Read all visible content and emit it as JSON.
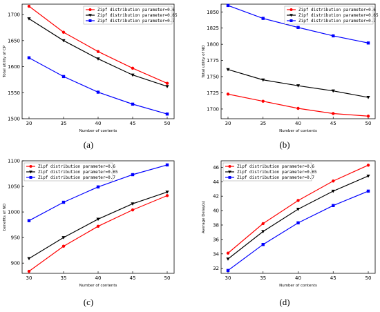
{
  "chart_data": [
    {
      "type": "line",
      "panel_label": "(a)",
      "xlabel": "Number of contents",
      "ylabel": "Total utility of CP",
      "x": [
        30,
        35,
        40,
        45,
        50
      ],
      "xlim": [
        30,
        50
      ],
      "ylim": [
        1500,
        1720
      ],
      "yticks": [
        1500,
        1550,
        1600,
        1650,
        1700
      ],
      "grid": false,
      "legend_position": "top-right",
      "series": [
        {
          "name": "Zipf distribution parameter=0.6",
          "values": [
            1716,
            1666,
            1629,
            1597,
            1568
          ],
          "color": "#ff0000",
          "marker": "circle"
        },
        {
          "name": "Zipf distribution parameter=0.65",
          "values": [
            1692,
            1650,
            1615,
            1584,
            1562
          ],
          "color": "#000000",
          "marker": "triangle-down"
        },
        {
          "name": "Zipf distribution parameter=0.7",
          "values": [
            1617,
            1581,
            1551,
            1528,
            1509
          ],
          "color": "#0000ff",
          "marker": "square"
        }
      ]
    },
    {
      "type": "line",
      "panel_label": "(b)",
      "xlabel": "Number of contents",
      "ylabel": "Total utility of NO",
      "x": [
        30,
        35,
        40,
        45,
        50
      ],
      "xlim": [
        30,
        50
      ],
      "ylim": [
        1685,
        1862
      ],
      "yticks": [
        1700,
        1725,
        1750,
        1775,
        1800,
        1825,
        1850
      ],
      "grid": false,
      "legend_position": "top-right",
      "series": [
        {
          "name": "Zipf distribution parameter=0.6",
          "values": [
            1723,
            1712,
            1701,
            1693,
            1689
          ],
          "color": "#ff0000",
          "marker": "circle"
        },
        {
          "name": "Zipf distribution parameter=0.65",
          "values": [
            1761,
            1745,
            1736,
            1728,
            1718
          ],
          "color": "#000000",
          "marker": "triangle-down"
        },
        {
          "name": "Zipf distribution parameter=0.7",
          "values": [
            1860,
            1840,
            1826,
            1813,
            1802
          ],
          "color": "#0000ff",
          "marker": "square"
        }
      ]
    },
    {
      "type": "line",
      "panel_label": "(c)",
      "xlabel": "Number of contents",
      "ylabel": "benefits of NO",
      "x": [
        30,
        35,
        40,
        45,
        50
      ],
      "xlim": [
        30,
        50
      ],
      "ylim": [
        880,
        1100
      ],
      "yticks": [
        900,
        950,
        1000,
        1050,
        1100
      ],
      "grid": false,
      "legend_position": "top-left",
      "series": [
        {
          "name": "Zipf distribution parameter=0.6",
          "values": [
            884,
            933,
            972,
            1004,
            1032
          ],
          "color": "#ff0000",
          "marker": "circle"
        },
        {
          "name": "Zipf distribution parameter=0.65",
          "values": [
            909,
            950,
            986,
            1016,
            1039
          ],
          "color": "#000000",
          "marker": "triangle-down"
        },
        {
          "name": "Zipf distribution parameter=0.7",
          "values": [
            983,
            1019,
            1049,
            1073,
            1092
          ],
          "color": "#0000ff",
          "marker": "square"
        }
      ]
    },
    {
      "type": "line",
      "panel_label": "(d)",
      "xlabel": "Number of contents",
      "ylabel": "Average Delay(s)",
      "x": [
        30,
        35,
        40,
        45,
        50
      ],
      "xlim": [
        30,
        50
      ],
      "ylim": [
        31.3,
        46.9
      ],
      "yticks": [
        32,
        34,
        36,
        38,
        40,
        42,
        44,
        46
      ],
      "grid": false,
      "legend_position": "top-left",
      "series": [
        {
          "name": "Zipf distribution parameter=0.6",
          "values": [
            34.1,
            38.2,
            41.4,
            44.1,
            46.3
          ],
          "color": "#ff0000",
          "marker": "circle"
        },
        {
          "name": "Zipf distribution parameter=0.65",
          "values": [
            33.3,
            37.1,
            40.2,
            42.7,
            44.8
          ],
          "color": "#000000",
          "marker": "triangle-down"
        },
        {
          "name": "Zipf distribution parameter=0.7",
          "values": [
            31.7,
            35.3,
            38.3,
            40.7,
            42.7
          ],
          "color": "#0000ff",
          "marker": "square"
        }
      ]
    }
  ]
}
